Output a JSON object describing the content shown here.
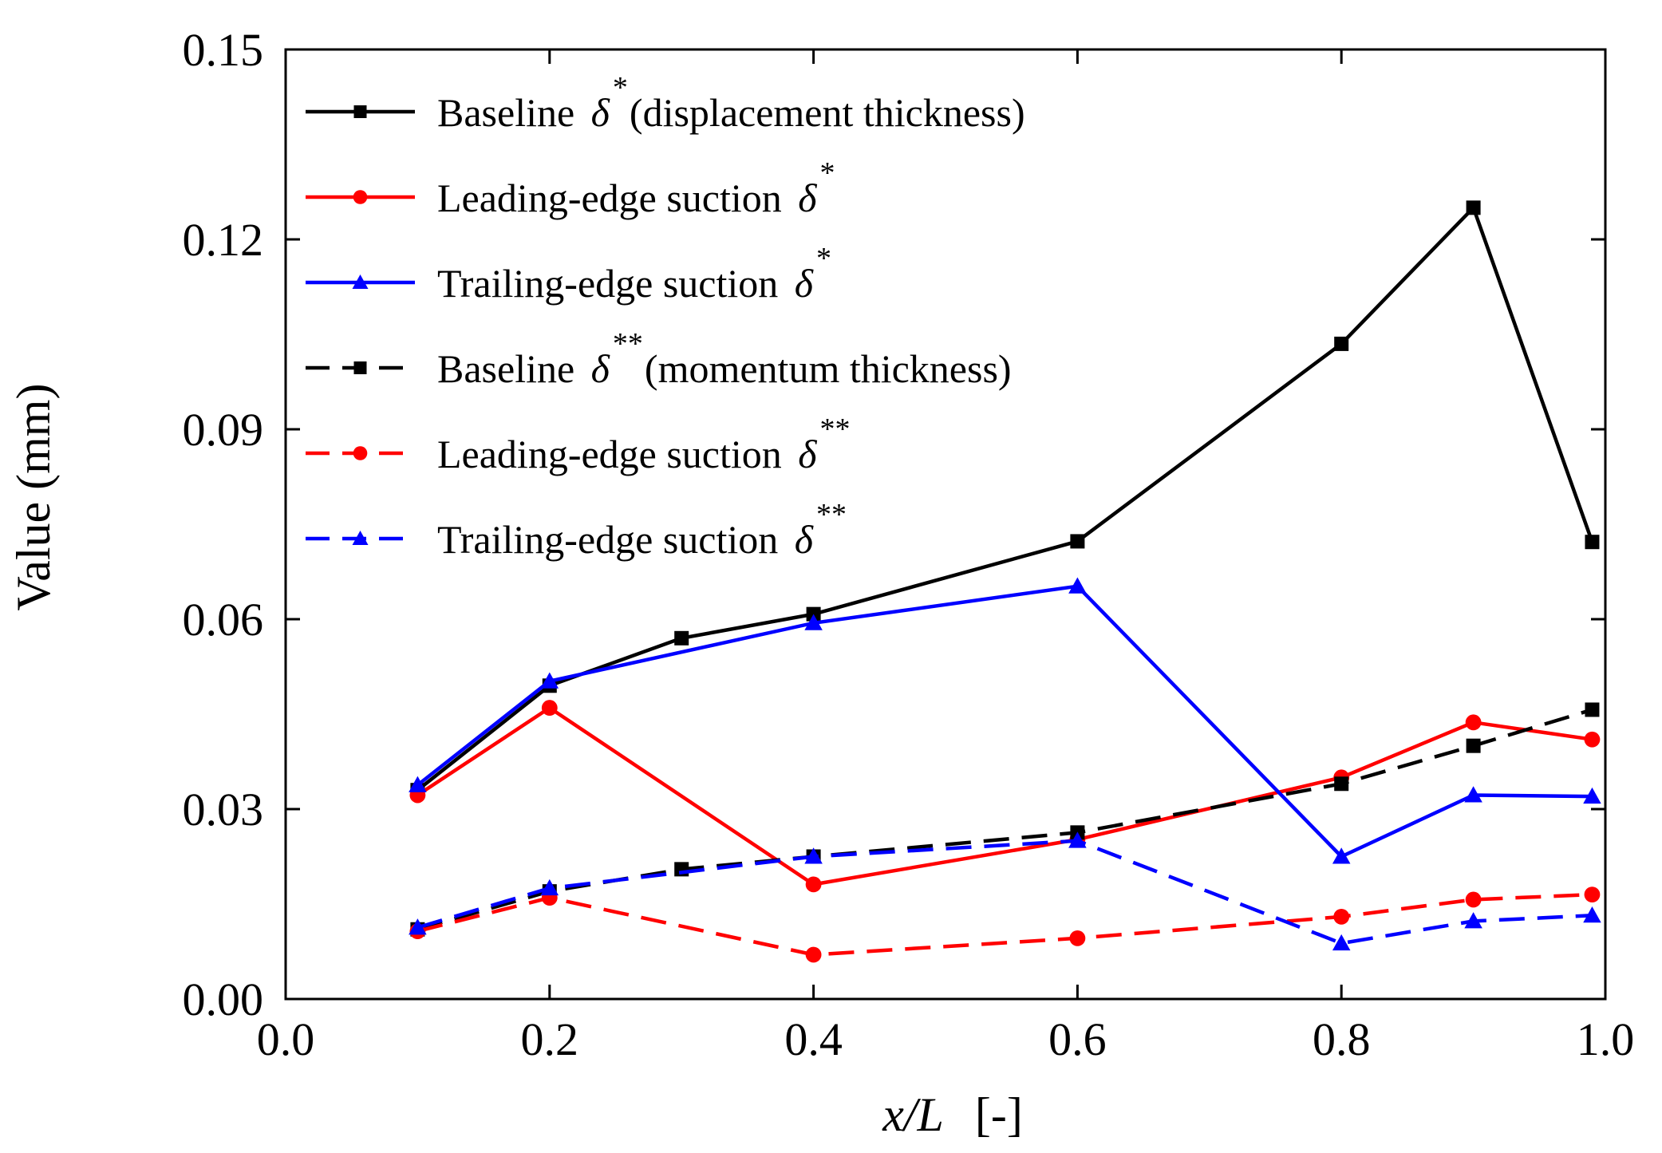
{
  "chart_data": {
    "type": "line",
    "xlabel": {
      "italic": "x/L",
      "unit": "[-]"
    },
    "ylabel": "Value (mm)",
    "xlim": [
      0.0,
      1.0
    ],
    "ylim": [
      0.0,
      0.15
    ],
    "xticks": [
      "0.0",
      "0.2",
      "0.4",
      "0.6",
      "0.8",
      "1.0"
    ],
    "yticks": [
      "0.00",
      "0.03",
      "0.06",
      "0.09",
      "0.12",
      "0.15"
    ],
    "grid": false,
    "legend_position": "top-left",
    "series": [
      {
        "name": "Baseline δ* (displacement thickness)",
        "legend": {
          "text": "Baseline ",
          "symbol": "δ",
          "sup": "*",
          "after": "(displacement thickness)"
        },
        "color": "#000000",
        "dash": "solid",
        "marker": "square",
        "x": [
          0.1,
          0.2,
          0.3,
          0.4,
          0.6,
          0.8,
          0.9,
          0.99
        ],
        "y": [
          0.033,
          0.0495,
          0.057,
          0.0608,
          0.0723,
          0.1035,
          0.125,
          0.0722
        ]
      },
      {
        "name": "Leading-edge suction δ*",
        "legend": {
          "text": "Leading-edge suction ",
          "symbol": "δ",
          "sup": "*",
          "after": ""
        },
        "color": "#ff0000",
        "dash": "solid",
        "marker": "circle",
        "x": [
          0.1,
          0.2,
          0.4,
          0.6,
          0.8,
          0.9,
          0.99
        ],
        "y": [
          0.0322,
          0.046,
          0.0181,
          0.0252,
          0.035,
          0.0437,
          0.041
        ]
      },
      {
        "name": "Trailing-edge suction δ*",
        "legend": {
          "text": "Trailing-edge suction ",
          "symbol": "δ",
          "sup": "*",
          "after": ""
        },
        "color": "#0000ff",
        "dash": "solid",
        "marker": "triangle",
        "x": [
          0.1,
          0.2,
          0.4,
          0.6,
          0.8,
          0.9,
          0.99
        ],
        "y": [
          0.0338,
          0.0502,
          0.0594,
          0.0652,
          0.0225,
          0.0322,
          0.032
        ]
      },
      {
        "name": "Baseline δ** (momentum thickness)",
        "legend": {
          "text": "Baseline ",
          "symbol": "δ",
          "sup": "**",
          "after": "(momentum  thickness)"
        },
        "color": "#000000",
        "dash": "dashed",
        "marker": "square",
        "x": [
          0.1,
          0.2,
          0.3,
          0.4,
          0.6,
          0.8,
          0.9,
          0.99
        ],
        "y": [
          0.011,
          0.017,
          0.0205,
          0.0225,
          0.0263,
          0.034,
          0.04,
          0.0457
        ]
      },
      {
        "name": "Leading-edge suction δ**",
        "legend": {
          "text": "Leading-edge suction ",
          "symbol": "δ",
          "sup": "**",
          "after": ""
        },
        "color": "#ff0000",
        "dash": "dashed",
        "marker": "circle",
        "x": [
          0.1,
          0.2,
          0.4,
          0.6,
          0.8,
          0.9,
          0.99
        ],
        "y": [
          0.0107,
          0.016,
          0.007,
          0.0096,
          0.013,
          0.0157,
          0.0165
        ]
      },
      {
        "name": "Trailing-edge suction δ**",
        "legend": {
          "text": "Trailing-edge suction ",
          "symbol": "δ",
          "sup": "**",
          "after": ""
        },
        "color": "#0000ff",
        "dash": "dashed",
        "marker": "triangle",
        "x": [
          0.1,
          0.2,
          0.4,
          0.6,
          0.8,
          0.9,
          0.99
        ],
        "y": [
          0.0113,
          0.0175,
          0.0225,
          0.025,
          0.0088,
          0.0123,
          0.0132
        ]
      }
    ]
  }
}
